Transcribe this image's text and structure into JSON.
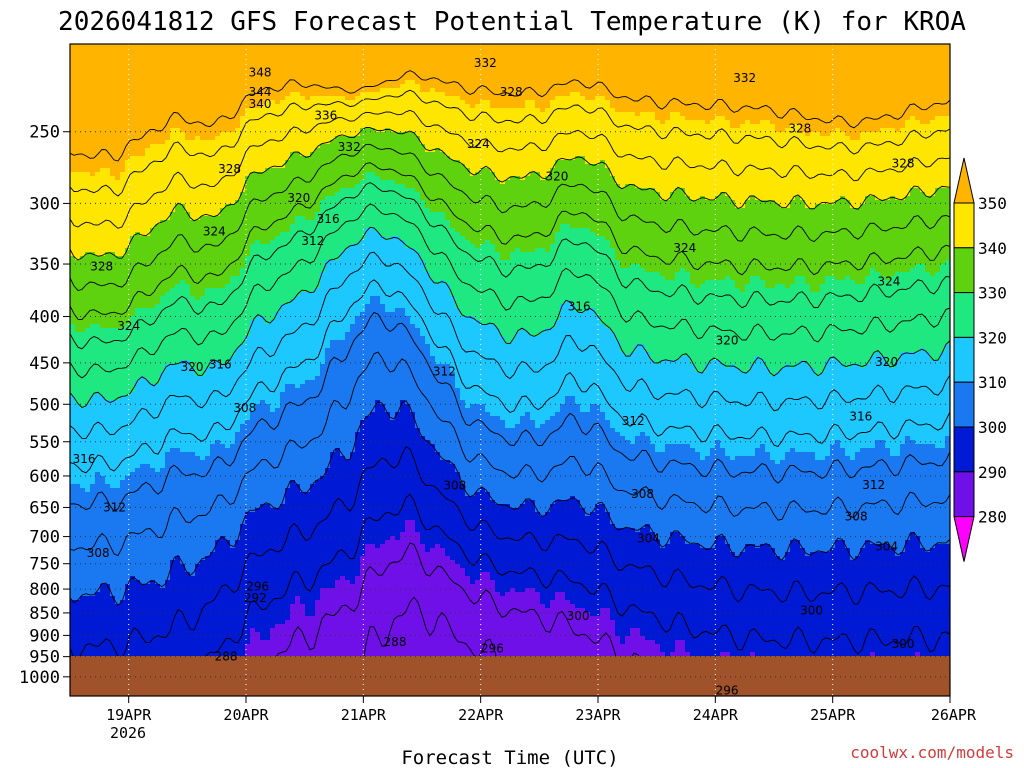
{
  "chart_data": {
    "type": "heatmap",
    "title": "2026041812 GFS Forecast Potential Temperature (K) for KROA",
    "xlabel": "Forecast Time (UTC)",
    "ylabel": "",
    "x_tick_labels": [
      "19APR",
      "20APR",
      "21APR",
      "22APR",
      "23APR",
      "24APR",
      "25APR",
      "26APR"
    ],
    "x_year_label": "2026",
    "x_tick_values": [
      0.5,
      1.5,
      2.5,
      3.5,
      4.5,
      5.5,
      6.5,
      7.5
    ],
    "xlim": [
      0,
      7.5
    ],
    "y_tick_labels": [
      "250",
      "300",
      "350",
      "400",
      "450",
      "500",
      "550",
      "600",
      "650",
      "700",
      "750",
      "800",
      "850",
      "900",
      "950",
      "1000"
    ],
    "y_tick_values": [
      250,
      300,
      350,
      400,
      450,
      500,
      550,
      600,
      650,
      700,
      750,
      800,
      850,
      900,
      950,
      1000
    ],
    "ylim": [
      200,
      1050
    ],
    "y_scale": "log-pressure",
    "grid": true,
    "colorbar": {
      "labels": [
        "350",
        "340",
        "330",
        "320",
        "310",
        "300",
        "290",
        "280"
      ],
      "levels": [
        350,
        340,
        330,
        320,
        310,
        300,
        290,
        280
      ],
      "colors": [
        "#ffe600",
        "#5fd20f",
        "#1fe880",
        "#1cc8ff",
        "#1a78f0",
        "#0019d4",
        "#7010e8",
        "#f010f0"
      ],
      "extend_top_color": "#ffb400",
      "extend_bottom_color": "#ff00ff"
    },
    "contour_labels": [
      {
        "text": "348",
        "t": 1.62,
        "p": 215
      },
      {
        "text": "344",
        "t": 1.62,
        "p": 226
      },
      {
        "text": "340",
        "t": 1.62,
        "p": 233
      },
      {
        "text": "336",
        "t": 2.18,
        "p": 240
      },
      {
        "text": "332",
        "t": 2.38,
        "p": 260
      },
      {
        "text": "332",
        "t": 3.54,
        "p": 210
      },
      {
        "text": "328",
        "t": 3.76,
        "p": 226
      },
      {
        "text": "332",
        "t": 5.75,
        "p": 218
      },
      {
        "text": "328",
        "t": 1.36,
        "p": 275
      },
      {
        "text": "324",
        "t": 3.48,
        "p": 258
      },
      {
        "text": "328",
        "t": 6.22,
        "p": 248
      },
      {
        "text": "328",
        "t": 7.1,
        "p": 271
      },
      {
        "text": "320",
        "t": 4.15,
        "p": 280
      },
      {
        "text": "320",
        "t": 1.95,
        "p": 296
      },
      {
        "text": "316",
        "t": 2.2,
        "p": 312
      },
      {
        "text": "312",
        "t": 2.07,
        "p": 330
      },
      {
        "text": "324",
        "t": 1.23,
        "p": 322
      },
      {
        "text": "328",
        "t": 0.27,
        "p": 352
      },
      {
        "text": "324",
        "t": 5.24,
        "p": 336
      },
      {
        "text": "324",
        "t": 6.98,
        "p": 366
      },
      {
        "text": "324",
        "t": 0.5,
        "p": 410
      },
      {
        "text": "316",
        "t": 4.34,
        "p": 390
      },
      {
        "text": "320",
        "t": 5.6,
        "p": 425
      },
      {
        "text": "320",
        "t": 1.04,
        "p": 455
      },
      {
        "text": "316",
        "t": 1.28,
        "p": 452
      },
      {
        "text": "312",
        "t": 3.19,
        "p": 460
      },
      {
        "text": "320",
        "t": 6.96,
        "p": 449
      },
      {
        "text": "308",
        "t": 1.49,
        "p": 505
      },
      {
        "text": "316",
        "t": 6.74,
        "p": 516
      },
      {
        "text": "312",
        "t": 4.8,
        "p": 522
      },
      {
        "text": "316",
        "t": 0.12,
        "p": 575
      },
      {
        "text": "308",
        "t": 3.28,
        "p": 615
      },
      {
        "text": "308",
        "t": 4.88,
        "p": 628
      },
      {
        "text": "312",
        "t": 6.85,
        "p": 614
      },
      {
        "text": "312",
        "t": 0.38,
        "p": 650
      },
      {
        "text": "308",
        "t": 6.7,
        "p": 665
      },
      {
        "text": "304",
        "t": 4.93,
        "p": 703
      },
      {
        "text": "304",
        "t": 6.96,
        "p": 718
      },
      {
        "text": "308",
        "t": 0.24,
        "p": 730
      },
      {
        "text": "296",
        "t": 1.6,
        "p": 795
      },
      {
        "text": "292",
        "t": 1.58,
        "p": 818
      },
      {
        "text": "300",
        "t": 4.33,
        "p": 857
      },
      {
        "text": "300",
        "t": 6.32,
        "p": 845
      },
      {
        "text": "288",
        "t": 2.77,
        "p": 915
      },
      {
        "text": "288",
        "t": 1.33,
        "p": 950
      },
      {
        "text": "296",
        "t": 3.6,
        "p": 930
      },
      {
        "text": "300",
        "t": 7.1,
        "p": 920
      },
      {
        "text": "296",
        "t": 5.6,
        "p": 1035
      }
    ]
  },
  "credit": "coolwx.com/models"
}
